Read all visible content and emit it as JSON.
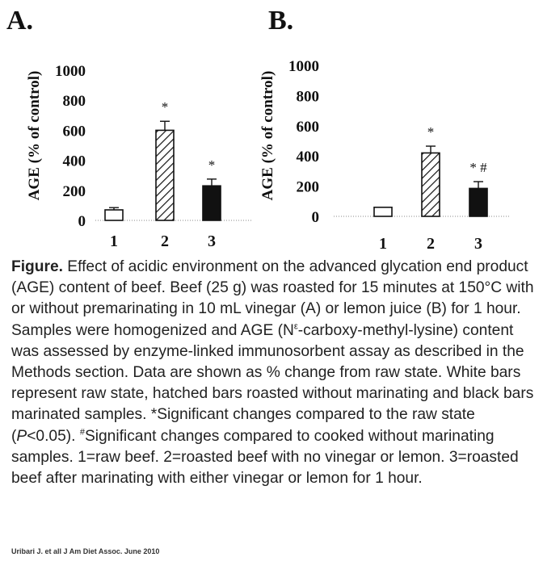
{
  "chart_data": [
    {
      "type": "bar",
      "panel_label": "A.",
      "ylabel": "AGE (% of control)",
      "categories": [
        "1",
        "2",
        "3"
      ],
      "values": [
        70,
        600,
        230
      ],
      "errors": [
        15,
        60,
        45
      ],
      "fills": [
        "white",
        "hatched",
        "black"
      ],
      "annotations": [
        "",
        "*",
        "*"
      ],
      "yticks": [
        0,
        200,
        400,
        600,
        800,
        1000
      ],
      "ylim": [
        0,
        1000
      ]
    },
    {
      "type": "bar",
      "panel_label": "B.",
      "ylabel": "AGE (% of control)",
      "categories": [
        "1",
        "2",
        "3"
      ],
      "values": [
        60,
        420,
        185
      ],
      "errors": [
        0,
        45,
        45
      ],
      "fills": [
        "white",
        "hatched",
        "black"
      ],
      "annotations": [
        "",
        "*",
        "* #"
      ],
      "yticks": [
        0,
        200,
        400,
        600,
        800,
        1000
      ],
      "ylim": [
        0,
        1000
      ]
    }
  ],
  "caption": {
    "label": "Figure.",
    "t1": " Effect of acidic environment on the advanced glycation end product (AGE) content of beef. Beef (25 g) was roasted for 15 minutes at 150°C with or without premarinating in 10 mL vinegar (A) or lemon juice (B) for 1 hour. Samples were homogenized and AGE (N",
    "sup1": "ε",
    "t2": "-carboxy-methyl-lysine) content was assessed by enzyme-linked immunosorbent assay as described in the Methods section. Data are shown as % change from raw state. White bars represent raw state, hatched bars roasted without marinating and black bars marinated samples. *Significant changes compared to the raw state (",
    "p": "P",
    "t3": "<0.05). ",
    "sup2": "#",
    "t4": "Significant changes compared to cooked without marinating samples. 1=raw beef. 2=roasted beef with no vinegar or lemon. 3=roasted beef after marinating with either vinegar or lemon for 1 hour."
  },
  "citation": "Uribari J. et all J Am Diet Assoc. June 2010",
  "colors": {
    "ink": "#111111",
    "baseline": "#888888"
  }
}
